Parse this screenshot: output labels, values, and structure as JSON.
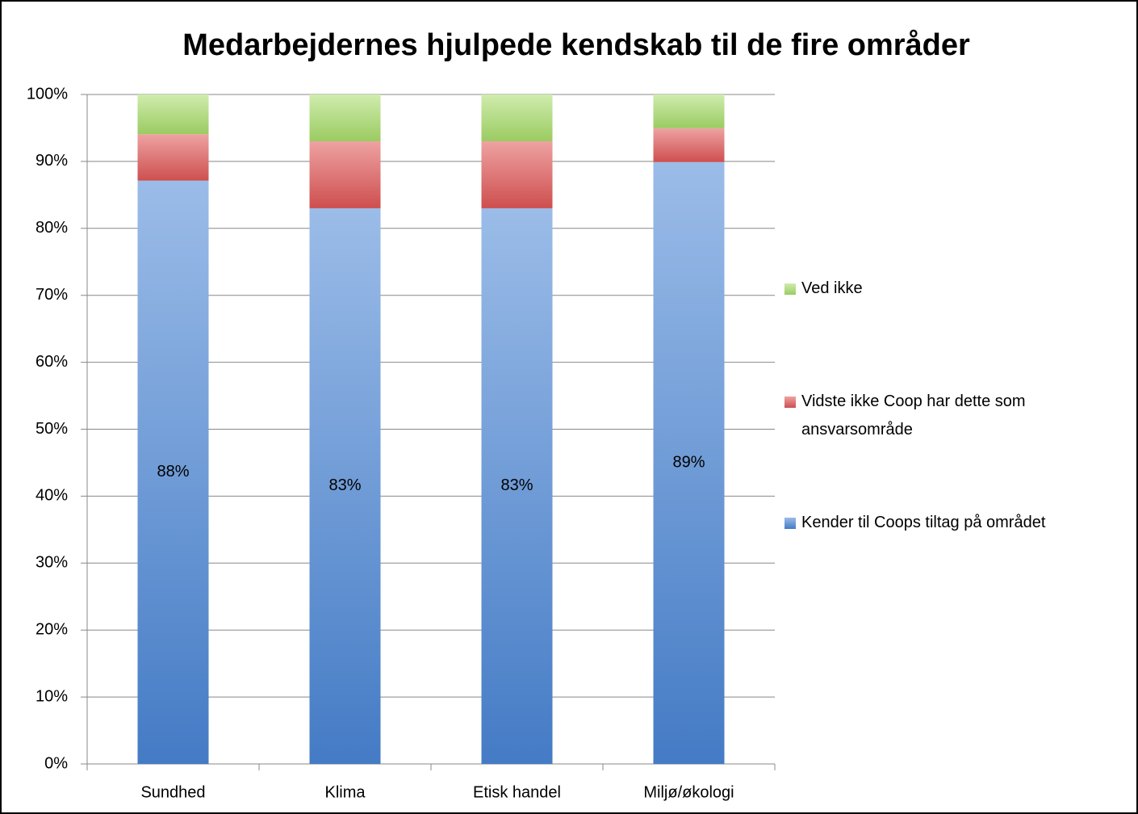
{
  "chart_data": {
    "type": "bar",
    "stacking": "percent",
    "title": "Medarbejdernes hjulpede kendskab til de fire områder",
    "categories": [
      "Sundhed",
      "Klima",
      "Etisk handel",
      "Miljø/økologi"
    ],
    "series": [
      {
        "name": "Kender til Coops tiltag på området",
        "color": "#4a86d6",
        "values": [
          88,
          83,
          83,
          89
        ],
        "value_labels": [
          "88%",
          "83%",
          "83%",
          "89%"
        ]
      },
      {
        "name": "Vidste ikke Coop har dette som ansvarsområde",
        "color": "#e05656",
        "values": [
          7,
          10,
          10,
          5
        ]
      },
      {
        "name": "Ved ikke",
        "color": "#a8dd6a",
        "values": [
          6,
          7,
          7,
          5
        ]
      }
    ],
    "ylim": [
      0,
      100
    ],
    "yticks": [
      {
        "value": 0,
        "label": "0%"
      },
      {
        "value": 10,
        "label": "10%"
      },
      {
        "value": 20,
        "label": "20%"
      },
      {
        "value": 30,
        "label": "30%"
      },
      {
        "value": 40,
        "label": "40%"
      },
      {
        "value": 50,
        "label": "50%"
      },
      {
        "value": 60,
        "label": "60%"
      },
      {
        "value": 70,
        "label": "70%"
      },
      {
        "value": 80,
        "label": "80%"
      },
      {
        "value": 90,
        "label": "90%"
      },
      {
        "value": 100,
        "label": "100%"
      }
    ],
    "grid": true,
    "legend": "right"
  }
}
